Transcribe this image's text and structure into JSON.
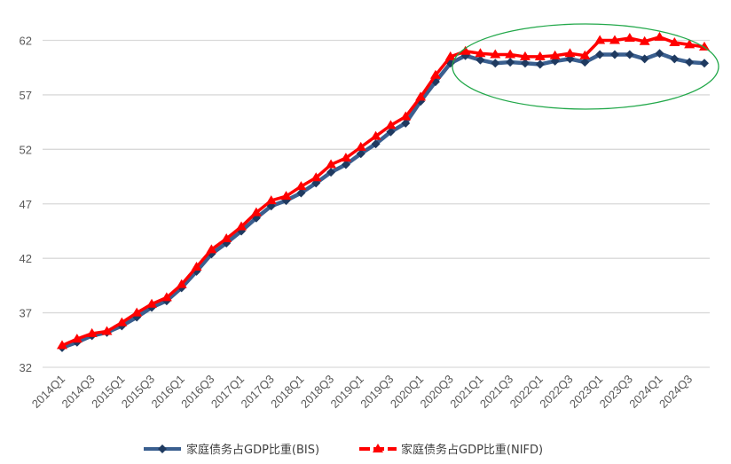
{
  "chart_data": {
    "type": "line",
    "title": "",
    "xlabel": "",
    "ylabel": "",
    "ylim": [
      32,
      62
    ],
    "yticks": [
      32,
      37,
      42,
      47,
      52,
      57,
      62
    ],
    "grid": true,
    "legend_position": "bottom",
    "x": [
      "2014Q1",
      "2014Q2",
      "2014Q3",
      "2014Q4",
      "2015Q1",
      "2015Q2",
      "2015Q3",
      "2015Q4",
      "2016Q1",
      "2016Q2",
      "2016Q3",
      "2016Q4",
      "2017Q1",
      "2017Q2",
      "2017Q3",
      "2017Q4",
      "2018Q1",
      "2018Q2",
      "2018Q3",
      "2018Q4",
      "2019Q1",
      "2019Q2",
      "2019Q3",
      "2019Q4",
      "2020Q1",
      "2020Q2",
      "2020Q3",
      "2020Q4",
      "2021Q1",
      "2021Q2",
      "2021Q3",
      "2021Q4",
      "2022Q1",
      "2022Q2",
      "2022Q3",
      "2022Q4",
      "2023Q1",
      "2023Q2",
      "2023Q3",
      "2023Q4",
      "2024Q1",
      "2024Q2",
      "2024Q3",
      "2024Q4"
    ],
    "xtick_labels": [
      "2014Q1",
      "2014Q3",
      "2015Q1",
      "2015Q3",
      "2016Q1",
      "2016Q3",
      "2017Q1",
      "2017Q3",
      "2018Q1",
      "2018Q3",
      "2019Q1",
      "2019Q3",
      "2020Q1",
      "2020Q3",
      "2021Q1",
      "2021Q3",
      "2022Q1",
      "2022Q3",
      "2023Q1",
      "2023Q3",
      "2024Q1",
      "2024Q3"
    ],
    "series": [
      {
        "name": "家庭债务占GDP比重(BIS)",
        "color": "#1f3a60",
        "marker": "diamond",
        "values": [
          33.8,
          34.3,
          34.9,
          35.2,
          35.8,
          36.6,
          37.5,
          38.1,
          39.3,
          40.8,
          42.4,
          43.4,
          44.5,
          45.7,
          46.8,
          47.3,
          48.0,
          48.9,
          49.9,
          50.6,
          51.6,
          52.5,
          53.6,
          54.4,
          56.4,
          58.2,
          59.9,
          60.6,
          60.2,
          59.9,
          60.0,
          59.9,
          59.8,
          60.1,
          60.3,
          60.0,
          60.7,
          60.7,
          60.7,
          60.3,
          60.8,
          60.3,
          60.0,
          59.9
        ]
      },
      {
        "name": "家庭债务占GDP比重(NIFD)",
        "color": "#ff0000",
        "marker": "triangle",
        "values": [
          34.0,
          34.6,
          35.1,
          35.3,
          36.1,
          37.0,
          37.8,
          38.4,
          39.6,
          41.2,
          42.8,
          43.8,
          44.9,
          46.2,
          47.3,
          47.7,
          48.6,
          49.4,
          50.6,
          51.2,
          52.2,
          53.2,
          54.2,
          55.0,
          56.8,
          58.8,
          60.5,
          61.0,
          60.8,
          60.7,
          60.7,
          60.5,
          60.5,
          60.6,
          60.8,
          60.6,
          62.0,
          62.0,
          62.2,
          61.9,
          62.3,
          61.8,
          61.6,
          61.4
        ]
      }
    ],
    "annotation": {
      "type": "ellipse",
      "color": "#22a84a",
      "around_x": [
        "2020Q3",
        "2024Q4"
      ]
    }
  }
}
